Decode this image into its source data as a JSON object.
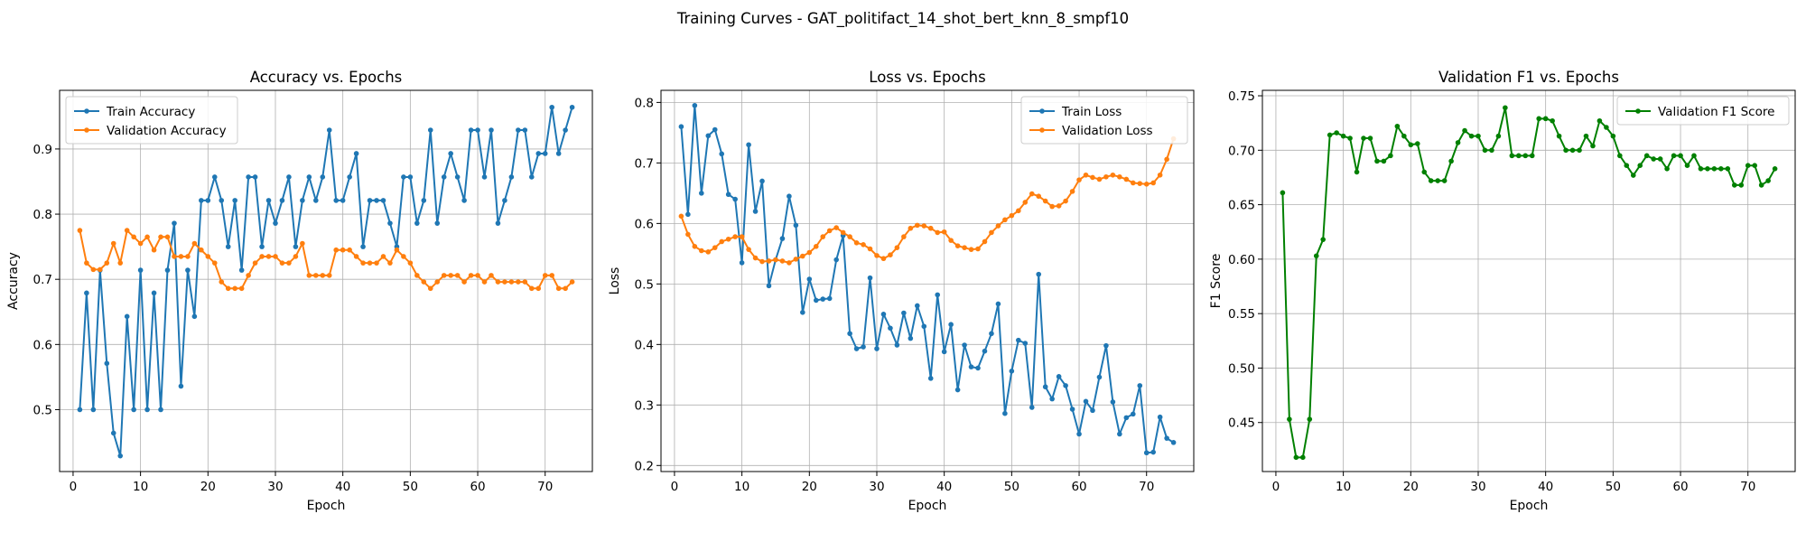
{
  "suptitle": "Training Curves - GAT_politifact_14_shot_bert_knn_8_smpf10",
  "chart_data": [
    {
      "type": "line",
      "title": "Accuracy vs. Epochs",
      "xlabel": "Epoch",
      "ylabel": "Accuracy",
      "xlim": [
        -2,
        77
      ],
      "ylim": [
        0.405,
        0.99
      ],
      "xticks": [
        0,
        10,
        20,
        30,
        40,
        50,
        60,
        70
      ],
      "yticks": [
        0.5,
        0.6,
        0.7,
        0.8,
        0.9
      ],
      "ytick_labels": [
        "0.5",
        "0.6",
        "0.7",
        "0.8",
        "0.9"
      ],
      "grid": true,
      "legend": "upper left",
      "series": [
        {
          "name": "Train Accuracy",
          "color": "#1f77b4",
          "x": [
            1,
            2,
            3,
            4,
            5,
            6,
            7,
            8,
            9,
            10,
            11,
            12,
            13,
            14,
            15,
            16,
            17,
            18,
            19,
            20,
            21,
            22,
            23,
            24,
            25,
            26,
            27,
            28,
            29,
            30,
            31,
            32,
            33,
            34,
            35,
            36,
            37,
            38,
            39,
            40,
            41,
            42,
            43,
            44,
            45,
            46,
            47,
            48,
            49,
            50,
            51,
            52,
            53,
            54,
            55,
            56,
            57,
            58,
            59,
            60,
            61,
            62,
            63,
            64,
            65,
            66,
            67,
            68,
            69,
            70,
            71,
            72,
            73,
            74
          ],
          "y": [
            0.5,
            0.679,
            0.5,
            0.714,
            0.571,
            0.464,
            0.429,
            0.643,
            0.5,
            0.714,
            0.5,
            0.679,
            0.5,
            0.714,
            0.786,
            0.536,
            0.714,
            0.643,
            0.821,
            0.821,
            0.857,
            0.821,
            0.75,
            0.821,
            0.714,
            0.857,
            0.857,
            0.75,
            0.821,
            0.786,
            0.821,
            0.857,
            0.75,
            0.821,
            0.857,
            0.821,
            0.857,
            0.929,
            0.821,
            0.821,
            0.857,
            0.893,
            0.75,
            0.821,
            0.821,
            0.821,
            0.786,
            0.75,
            0.857,
            0.857,
            0.786,
            0.821,
            0.929,
            0.786,
            0.857,
            0.893,
            0.857,
            0.821,
            0.929,
            0.929,
            0.857,
            0.929,
            0.786,
            0.821,
            0.857,
            0.929,
            0.929,
            0.857,
            0.893,
            0.893,
            0.964,
            0.893,
            0.929,
            0.964
          ]
        },
        {
          "name": "Validation Accuracy",
          "color": "#ff7f0e",
          "x": [
            1,
            2,
            3,
            4,
            5,
            6,
            7,
            8,
            9,
            10,
            11,
            12,
            13,
            14,
            15,
            16,
            17,
            18,
            19,
            20,
            21,
            22,
            23,
            24,
            25,
            26,
            27,
            28,
            29,
            30,
            31,
            32,
            33,
            34,
            35,
            36,
            37,
            38,
            39,
            40,
            41,
            42,
            43,
            44,
            45,
            46,
            47,
            48,
            49,
            50,
            51,
            52,
            53,
            54,
            55,
            56,
            57,
            58,
            59,
            60,
            61,
            62,
            63,
            64,
            65,
            66,
            67,
            68,
            69,
            70,
            71,
            72,
            73,
            74
          ],
          "y": [
            0.775,
            0.725,
            0.715,
            0.715,
            0.725,
            0.755,
            0.725,
            0.775,
            0.765,
            0.755,
            0.765,
            0.745,
            0.765,
            0.765,
            0.735,
            0.735,
            0.735,
            0.755,
            0.745,
            0.735,
            0.725,
            0.696,
            0.686,
            0.686,
            0.686,
            0.706,
            0.725,
            0.735,
            0.735,
            0.735,
            0.725,
            0.725,
            0.735,
            0.755,
            0.706,
            0.706,
            0.706,
            0.706,
            0.745,
            0.745,
            0.745,
            0.735,
            0.725,
            0.725,
            0.725,
            0.735,
            0.725,
            0.745,
            0.735,
            0.725,
            0.706,
            0.696,
            0.686,
            0.696,
            0.706,
            0.706,
            0.706,
            0.696,
            0.706,
            0.706,
            0.696,
            0.706,
            0.696,
            0.696,
            0.696,
            0.696,
            0.696,
            0.686,
            0.686,
            0.706,
            0.706,
            0.686,
            0.686,
            0.696
          ]
        }
      ]
    },
    {
      "type": "line",
      "title": "Loss vs. Epochs",
      "xlabel": "Epoch",
      "ylabel": "Loss",
      "xlim": [
        -2,
        77
      ],
      "ylim": [
        0.19,
        0.82
      ],
      "xticks": [
        0,
        10,
        20,
        30,
        40,
        50,
        60,
        70
      ],
      "yticks": [
        0.2,
        0.3,
        0.4,
        0.5,
        0.6,
        0.7,
        0.8
      ],
      "ytick_labels": [
        "0.2",
        "0.3",
        "0.4",
        "0.5",
        "0.6",
        "0.7",
        "0.8"
      ],
      "grid": true,
      "legend": "upper right",
      "series": [
        {
          "name": "Train Loss",
          "color": "#1f77b4",
          "x": [
            1,
            2,
            3,
            4,
            5,
            6,
            7,
            8,
            9,
            10,
            11,
            12,
            13,
            14,
            15,
            16,
            17,
            18,
            19,
            20,
            21,
            22,
            23,
            24,
            25,
            26,
            27,
            28,
            29,
            30,
            31,
            32,
            33,
            34,
            35,
            36,
            37,
            38,
            39,
            40,
            41,
            42,
            43,
            44,
            45,
            46,
            47,
            48,
            49,
            50,
            51,
            52,
            53,
            54,
            55,
            56,
            57,
            58,
            59,
            60,
            61,
            62,
            63,
            64,
            65,
            66,
            67,
            68,
            69,
            70,
            71,
            72,
            73,
            74
          ],
          "y": [
            0.76,
            0.615,
            0.795,
            0.65,
            0.745,
            0.755,
            0.715,
            0.648,
            0.64,
            0.535,
            0.73,
            0.62,
            0.67,
            0.497,
            0.54,
            0.575,
            0.645,
            0.597,
            0.453,
            0.508,
            0.473,
            0.475,
            0.476,
            0.54,
            0.58,
            0.418,
            0.393,
            0.396,
            0.51,
            0.393,
            0.45,
            0.427,
            0.399,
            0.452,
            0.41,
            0.464,
            0.43,
            0.344,
            0.482,
            0.388,
            0.433,
            0.325,
            0.399,
            0.363,
            0.361,
            0.389,
            0.418,
            0.467,
            0.286,
            0.356,
            0.407,
            0.402,
            0.296,
            0.516,
            0.33,
            0.31,
            0.347,
            0.332,
            0.293,
            0.252,
            0.306,
            0.291,
            0.346,
            0.398,
            0.305,
            0.252,
            0.279,
            0.285,
            0.332,
            0.221,
            0.222,
            0.28,
            0.245,
            0.238
          ]
        },
        {
          "name": "Validation Loss",
          "color": "#ff7f0e",
          "x": [
            1,
            2,
            3,
            4,
            5,
            6,
            7,
            8,
            9,
            10,
            11,
            12,
            13,
            14,
            15,
            16,
            17,
            18,
            19,
            20,
            21,
            22,
            23,
            24,
            25,
            26,
            27,
            28,
            29,
            30,
            31,
            32,
            33,
            34,
            35,
            36,
            37,
            38,
            39,
            40,
            41,
            42,
            43,
            44,
            45,
            46,
            47,
            48,
            49,
            50,
            51,
            52,
            53,
            54,
            55,
            56,
            57,
            58,
            59,
            60,
            61,
            62,
            63,
            64,
            65,
            66,
            67,
            68,
            69,
            70,
            71,
            72,
            73,
            74
          ],
          "y": [
            0.612,
            0.582,
            0.562,
            0.555,
            0.553,
            0.56,
            0.57,
            0.574,
            0.578,
            0.578,
            0.557,
            0.543,
            0.537,
            0.538,
            0.54,
            0.538,
            0.535,
            0.541,
            0.546,
            0.552,
            0.562,
            0.578,
            0.588,
            0.593,
            0.585,
            0.578,
            0.568,
            0.565,
            0.558,
            0.547,
            0.542,
            0.548,
            0.56,
            0.578,
            0.592,
            0.597,
            0.596,
            0.592,
            0.585,
            0.586,
            0.572,
            0.563,
            0.56,
            0.557,
            0.558,
            0.57,
            0.585,
            0.596,
            0.606,
            0.613,
            0.621,
            0.635,
            0.649,
            0.645,
            0.637,
            0.628,
            0.629,
            0.637,
            0.653,
            0.672,
            0.68,
            0.676,
            0.673,
            0.677,
            0.68,
            0.677,
            0.673,
            0.667,
            0.666,
            0.665,
            0.667,
            0.68,
            0.706,
            0.74
          ]
        }
      ]
    },
    {
      "type": "line",
      "title": "Validation F1 vs. Epochs",
      "xlabel": "Epoch",
      "ylabel": "F1 Score",
      "xlim": [
        -2,
        77
      ],
      "ylim": [
        0.405,
        0.755
      ],
      "xticks": [
        0,
        10,
        20,
        30,
        40,
        50,
        60,
        70
      ],
      "yticks": [
        0.45,
        0.5,
        0.55,
        0.6,
        0.65,
        0.7,
        0.75
      ],
      "ytick_labels": [
        "0.45",
        "0.50",
        "0.55",
        "0.60",
        "0.65",
        "0.70",
        "0.75"
      ],
      "grid": true,
      "legend": "upper right",
      "series": [
        {
          "name": "Validation F1 Score",
          "color": "#008000",
          "x": [
            1,
            2,
            3,
            4,
            5,
            6,
            7,
            8,
            9,
            10,
            11,
            12,
            13,
            14,
            15,
            16,
            17,
            18,
            19,
            20,
            21,
            22,
            23,
            24,
            25,
            26,
            27,
            28,
            29,
            30,
            31,
            32,
            33,
            34,
            35,
            36,
            37,
            38,
            39,
            40,
            41,
            42,
            43,
            44,
            45,
            46,
            47,
            48,
            49,
            50,
            51,
            52,
            53,
            54,
            55,
            56,
            57,
            58,
            59,
            60,
            61,
            62,
            63,
            64,
            65,
            66,
            67,
            68,
            69,
            70,
            71,
            72,
            73,
            74
          ],
          "y": [
            0.661,
            0.453,
            0.418,
            0.418,
            0.453,
            0.603,
            0.618,
            0.714,
            0.716,
            0.713,
            0.711,
            0.68,
            0.711,
            0.711,
            0.69,
            0.69,
            0.695,
            0.722,
            0.713,
            0.705,
            0.706,
            0.68,
            0.672,
            0.672,
            0.672,
            0.69,
            0.707,
            0.718,
            0.713,
            0.713,
            0.7,
            0.7,
            0.713,
            0.739,
            0.695,
            0.695,
            0.695,
            0.695,
            0.729,
            0.729,
            0.727,
            0.713,
            0.7,
            0.7,
            0.7,
            0.713,
            0.704,
            0.727,
            0.721,
            0.713,
            0.695,
            0.686,
            0.677,
            0.686,
            0.695,
            0.692,
            0.692,
            0.683,
            0.695,
            0.695,
            0.686,
            0.695,
            0.683,
            0.683,
            0.683,
            0.683,
            0.683,
            0.668,
            0.668,
            0.686,
            0.686,
            0.668,
            0.672,
            0.683
          ]
        }
      ]
    }
  ]
}
